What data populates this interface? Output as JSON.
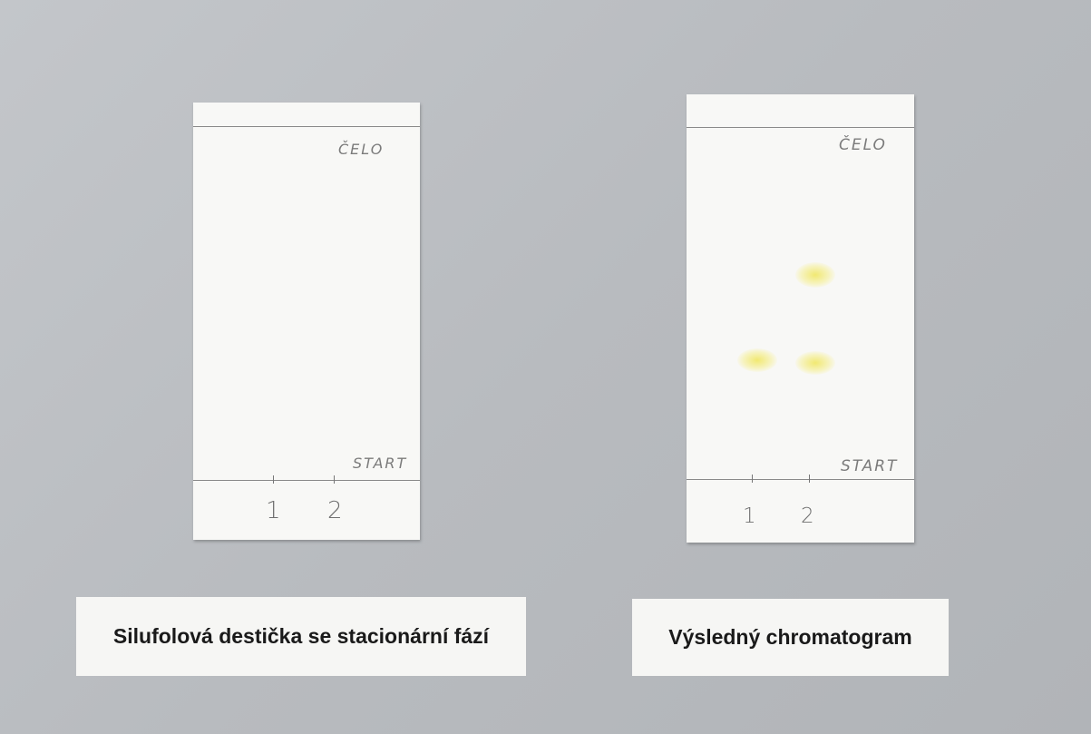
{
  "plates": [
    {
      "front_label": "ČELO",
      "start_label": "START",
      "lanes": [
        "1",
        "2"
      ],
      "caption": "Silufolová destička se stacionární fází"
    },
    {
      "front_label": "ČELO",
      "start_label": "START",
      "lanes": [
        "1",
        "2"
      ],
      "caption": "Výsledný chromatogram"
    }
  ]
}
